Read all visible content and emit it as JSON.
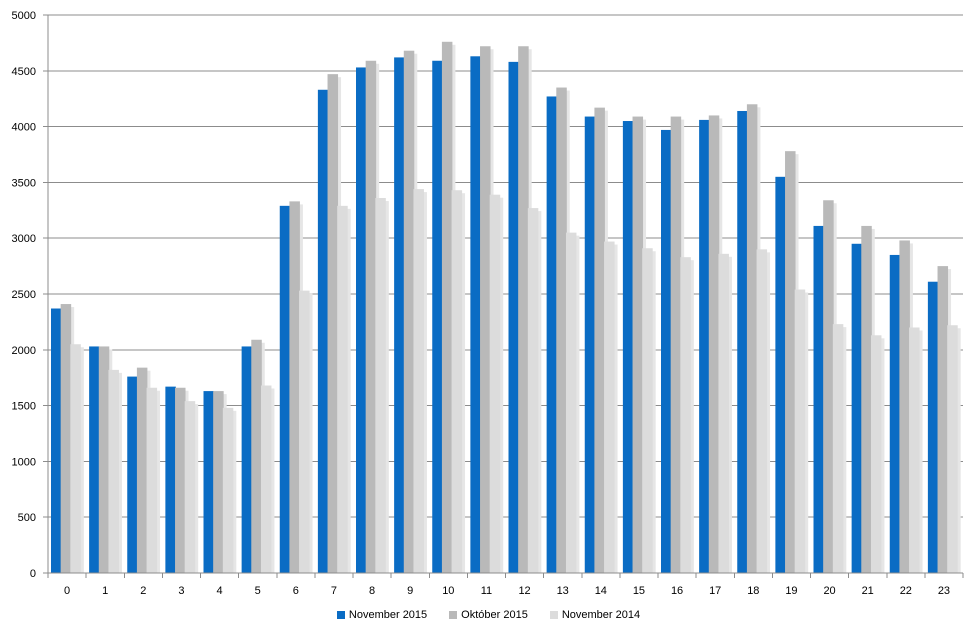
{
  "chart_data": {
    "type": "bar",
    "categories": [
      "0",
      "1",
      "2",
      "3",
      "4",
      "5",
      "6",
      "7",
      "8",
      "9",
      "10",
      "11",
      "12",
      "13",
      "14",
      "15",
      "16",
      "17",
      "18",
      "19",
      "20",
      "21",
      "22",
      "23"
    ],
    "series": [
      {
        "name": "November 2015",
        "color": "#0a6cc4",
        "values": [
          2370,
          2030,
          1760,
          1670,
          1630,
          2030,
          3290,
          4330,
          4530,
          4620,
          4590,
          4630,
          4580,
          4270,
          4090,
          4050,
          3970,
          4060,
          4140,
          3550,
          3110,
          2950,
          2850,
          2610
        ]
      },
      {
        "name": "Október 2015",
        "color": "#b9b9b9",
        "values": [
          2410,
          2030,
          1840,
          1660,
          1630,
          2090,
          3330,
          4470,
          4590,
          4680,
          4760,
          4720,
          4720,
          4350,
          4170,
          4090,
          4090,
          4100,
          4200,
          3780,
          3340,
          3110,
          2980,
          2750
        ]
      },
      {
        "name": "November 2014",
        "color": "#dcdcdc",
        "values": [
          2050,
          1820,
          1660,
          1540,
          1480,
          1680,
          2530,
          3290,
          3360,
          3440,
          3430,
          3390,
          3270,
          3050,
          2970,
          2910,
          2830,
          2860,
          2900,
          2540,
          2230,
          2130,
          2200,
          2220
        ]
      }
    ],
    "yticks": [
      "0",
      "500",
      "1000",
      "1500",
      "2000",
      "2500",
      "3000",
      "3500",
      "4000",
      "4500",
      "5000"
    ],
    "ylim": [
      0,
      5000
    ],
    "grid": true,
    "legend_position": "bottom"
  }
}
